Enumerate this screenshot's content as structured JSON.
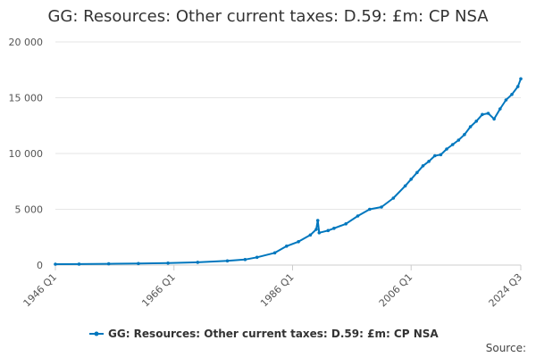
{
  "chart_data": {
    "type": "line",
    "title": "GG: Resources: Other current taxes: D.59: £m: CP NSA",
    "xlabel": "",
    "ylabel": "",
    "x_ticks": [
      "1946 Q1",
      "1966 Q1",
      "1986 Q1",
      "2006 Q1",
      "2024 Q3"
    ],
    "y_ticks": [
      "0",
      "5 000",
      "10 000",
      "15 000",
      "20 000"
    ],
    "ylim": [
      0,
      20000
    ],
    "xlim": [
      "1946 Q1",
      "2024 Q3"
    ],
    "grid": "horizontal",
    "legend_position": "bottom",
    "series_color": "#0077be",
    "series": [
      {
        "name": "GG: Resources: Other current taxes: D.59: £m: CP NSA",
        "x": [
          "1946 Q1",
          "1950 Q1",
          "1955 Q1",
          "1960 Q1",
          "1965 Q1",
          "1970 Q1",
          "1975 Q1",
          "1978 Q1",
          "1980 Q1",
          "1983 Q1",
          "1985 Q1",
          "1987 Q1",
          "1989 Q1",
          "1990 Q1",
          "1990 Q2",
          "1990 Q3",
          "1992 Q1",
          "1993 Q1",
          "1995 Q1",
          "1997 Q1",
          "1999 Q1",
          "2001 Q1",
          "2003 Q1",
          "2005 Q1",
          "2006 Q1",
          "2007 Q1",
          "2008 Q1",
          "2009 Q1",
          "2010 Q1",
          "2011 Q1",
          "2012 Q1",
          "2013 Q1",
          "2014 Q1",
          "2015 Q1",
          "2016 Q1",
          "2017 Q1",
          "2018 Q1",
          "2019 Q1",
          "2020 Q1",
          "2021 Q1",
          "2022 Q1",
          "2023 Q1",
          "2024 Q1",
          "2024 Q3"
        ],
        "values": [
          80,
          90,
          110,
          140,
          180,
          250,
          380,
          500,
          700,
          1100,
          1700,
          2100,
          2700,
          3200,
          4000,
          2900,
          3100,
          3300,
          3700,
          4400,
          5000,
          5200,
          6000,
          7100,
          7700,
          8300,
          8900,
          9300,
          9800,
          9900,
          10400,
          10800,
          11200,
          11700,
          12400,
          12900,
          13500,
          13600,
          13100,
          14000,
          14800,
          15300,
          16000,
          16700
        ]
      }
    ],
    "source_label": "Source:"
  }
}
